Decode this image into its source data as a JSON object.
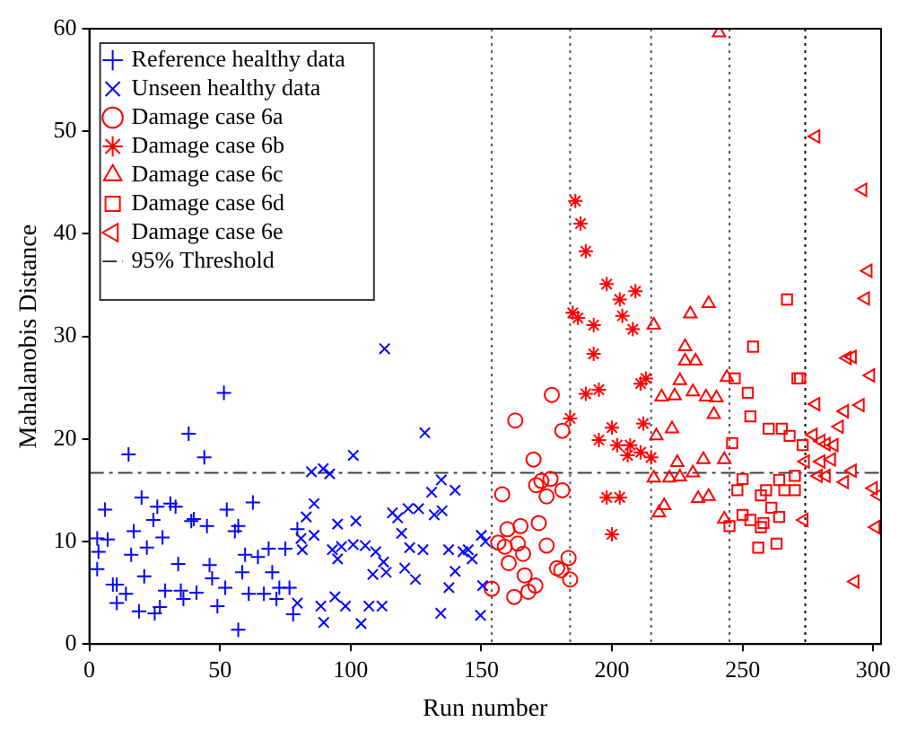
{
  "chart_data": {
    "type": "scatter",
    "xlabel": "Run number",
    "ylabel": "Mahalanobis Distance",
    "xlim": [
      0,
      303
    ],
    "ylim": [
      0,
      60
    ],
    "xticks": [
      0,
      50,
      100,
      150,
      200,
      250,
      300
    ],
    "yticks": [
      0,
      10,
      20,
      30,
      40,
      50,
      60
    ],
    "grid": false,
    "legend": "top left",
    "series": [
      {
        "name": "Reference healthy data",
        "color": "#0000ff",
        "marker": "plus",
        "x": [
          3,
          3.5,
          3,
          6,
          7,
          9,
          10.5,
          10.5,
          14,
          15,
          17,
          16,
          19,
          20,
          22,
          21,
          25,
          24.5,
          26,
          27,
          28,
          29,
          31,
          33,
          34,
          35,
          36,
          38,
          39,
          40,
          41,
          44,
          45,
          46,
          47,
          49,
          51.5,
          52.6,
          52,
          55.7,
          57,
          57,
          58.5,
          59.6,
          61,
          62.6,
          64.5,
          66.8,
          68.6,
          70,
          71.6,
          72.7,
          75,
          76.6,
          78,
          79.6
        ],
        "values": [
          7.3,
          9,
          10.3,
          13.1,
          10.2,
          5.8,
          5.8,
          4,
          4.9,
          18.5,
          11,
          8.7,
          3.2,
          14.3,
          9.4,
          6.6,
          3,
          12.1,
          13.4,
          3.6,
          10.4,
          5.2,
          13.7,
          13.4,
          7.8,
          5.2,
          4.4,
          20.5,
          12,
          12.2,
          5,
          18.2,
          11.5,
          7.7,
          6.4,
          3.7,
          24.5,
          13.1,
          5.5,
          11,
          11.5,
          1.4,
          7,
          8.7,
          4.9,
          13.8,
          8.5,
          4.9,
          9.3,
          7,
          4.4,
          5.5,
          9.3,
          5.5,
          2.9,
          11.2
        ]
      },
      {
        "name": "Unseen healthy data",
        "color": "#0000ff",
        "marker": "x",
        "x": [
          113,
          128.4,
          101,
          85,
          89.5,
          92,
          134.7,
          86,
          131,
          140,
          83,
          95,
          102,
          116,
          118,
          122,
          126,
          132,
          135,
          81,
          86,
          119.5,
          150,
          81.5,
          93,
          96.5,
          101,
          105.6,
          109.6,
          122.6,
          127.7,
          137.5,
          143,
          145,
          146.5,
          151.6,
          95,
          112.6,
          120.7,
          140,
          108.5,
          113.6,
          124.8,
          150.5,
          137.6,
          94,
          98,
          88.6,
          107,
          112,
          134.5,
          79.6,
          89.7,
          104,
          149.7
        ],
        "values": [
          28.8,
          20.6,
          18.4,
          16.8,
          17.1,
          16.6,
          16,
          13.7,
          14.8,
          15,
          12.4,
          11.7,
          12,
          12.8,
          12.3,
          13.2,
          13.2,
          12.6,
          13,
          10.3,
          10.6,
          10.8,
          10.6,
          9.2,
          9.2,
          9.5,
          9.7,
          9.6,
          9,
          9.4,
          9.2,
          9.2,
          9,
          9.2,
          8.3,
          10,
          8.3,
          8,
          7.4,
          7.1,
          6.8,
          7,
          6.3,
          5.7,
          5.5,
          4.6,
          3.7,
          3.7,
          3.7,
          3.7,
          3,
          4,
          2.1,
          2,
          2.8
        ]
      },
      {
        "name": "Damage case 6a",
        "color": "#ff0000",
        "marker": "circle",
        "x": [
          158,
          170,
          171,
          173,
          176.5,
          175,
          181,
          160,
          165,
          172,
          156.5,
          159,
          164,
          166,
          175,
          160.5,
          166.6,
          170.7,
          168,
          162.6,
          154,
          179,
          180.6,
          183.4,
          184,
          163,
          177,
          181
        ],
        "values": [
          14.6,
          18,
          15.5,
          15.9,
          16.1,
          14.4,
          15,
          11.2,
          11.5,
          11.8,
          9.9,
          9.5,
          9.8,
          8.8,
          9.6,
          7.9,
          6.7,
          5.7,
          5.1,
          4.6,
          5.4,
          7.4,
          7.2,
          8.4,
          6.3,
          21.8,
          24.3,
          20.8
        ]
      },
      {
        "name": "Damage case 6b",
        "color": "#ff0000",
        "marker": "cross",
        "x": [
          186,
          188,
          190,
          198,
          209,
          203,
          185,
          187,
          193,
          204,
          208,
          193,
          190,
          195,
          211,
          213,
          184,
          200,
          212,
          195,
          202,
          207,
          206,
          211,
          215,
          198,
          203,
          200
        ],
        "values": [
          43.2,
          41,
          38.3,
          35.1,
          34.4,
          33.6,
          32.3,
          31.8,
          31.1,
          32,
          30.7,
          28.3,
          24.4,
          24.8,
          25.4,
          25.9,
          22,
          21.1,
          21.5,
          19.9,
          19.4,
          19.4,
          18.4,
          18.7,
          18.2,
          14.3,
          14.3,
          10.7
        ]
      },
      {
        "name": "Damage case 6c",
        "color": "#ff0000",
        "marker": "triangle",
        "x": [
          241,
          237,
          230,
          216,
          228,
          228,
          232,
          226,
          244,
          219,
          224,
          231,
          236,
          240,
          239,
          223,
          217,
          225,
          235,
          243,
          216,
          222,
          226,
          231,
          233,
          237,
          220,
          218,
          243
        ],
        "values": [
          59.6,
          33.2,
          32.2,
          31.1,
          29,
          27.6,
          27.6,
          25.7,
          26,
          24.1,
          24.2,
          24.6,
          24.1,
          24,
          22.4,
          21,
          20.3,
          17.7,
          18,
          18,
          16.2,
          16.2,
          16.3,
          16.7,
          14.2,
          14.4,
          13.5,
          12.8,
          12.2
        ]
      },
      {
        "name": "Damage case 6d",
        "color": "#ff0000",
        "marker": "square",
        "x": [
          267,
          254,
          247,
          271,
          272,
          252,
          253,
          260,
          265,
          268,
          273,
          246,
          250,
          264,
          270,
          248,
          259,
          266,
          270,
          257,
          261,
          250,
          264,
          245,
          253,
          258,
          257,
          263,
          256
        ],
        "values": [
          33.6,
          29,
          25.9,
          25.9,
          25.9,
          24.5,
          22.2,
          21,
          21,
          20.3,
          19.4,
          19.6,
          16.1,
          16,
          16.4,
          15,
          15,
          15,
          15,
          14.5,
          13.3,
          12.6,
          12.4,
          11.5,
          12.1,
          11.8,
          11.4,
          9.8,
          9.4
        ]
      },
      {
        "name": "Damage case 6e",
        "color": "#ff0000",
        "marker": "triangle-left",
        "x": [
          278,
          296,
          298,
          297,
          292,
          290,
          299,
          278,
          295,
          289,
          287,
          277,
          280,
          282,
          285,
          274,
          280,
          284,
          292,
          279,
          282,
          289,
          300,
          302,
          301,
          273.5,
          293
        ],
        "values": [
          49.5,
          44.3,
          36.4,
          33.7,
          28,
          27.9,
          26.2,
          23.4,
          23.3,
          22.7,
          21.2,
          20.4,
          19.8,
          19.5,
          19.4,
          17.8,
          17.8,
          18,
          16.9,
          16.4,
          16.4,
          15.8,
          15.2,
          14.5,
          11.4,
          12.1,
          6.1
        ]
      }
    ],
    "ref_lines": [
      {
        "axis": "y",
        "value": 16.7,
        "label": "95% Threshold",
        "color": "#404040",
        "line_style": "dashdot"
      },
      {
        "axis": "x",
        "value": 154,
        "color": "#555555",
        "line_style": "dotted"
      },
      {
        "axis": "x",
        "value": 184,
        "color": "#555555",
        "line_style": "dotted"
      },
      {
        "axis": "x",
        "value": 215,
        "color": "#555555",
        "line_style": "dotted"
      },
      {
        "axis": "x",
        "value": 245,
        "color": "#555555",
        "line_style": "dotted"
      },
      {
        "axis": "x",
        "value": 274,
        "color": "#000000",
        "line_style": "dotted"
      }
    ]
  }
}
